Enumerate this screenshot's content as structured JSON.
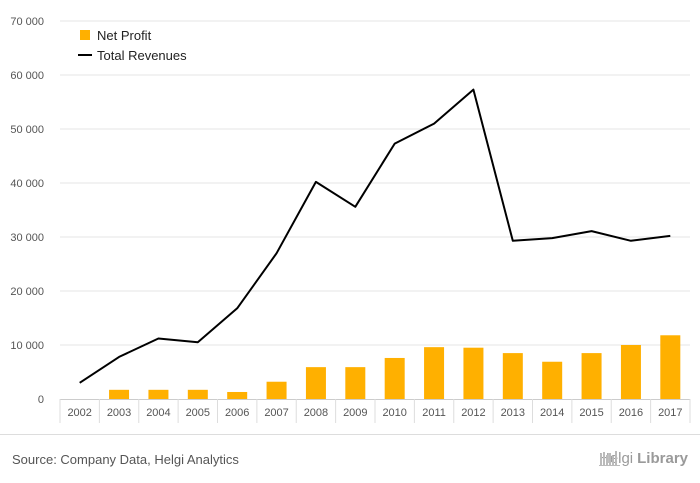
{
  "chart_data": {
    "type": "bar",
    "categories": [
      "2002",
      "2003",
      "2004",
      "2005",
      "2006",
      "2007",
      "2008",
      "2009",
      "2010",
      "2011",
      "2012",
      "2013",
      "2014",
      "2015",
      "2016",
      "2017"
    ],
    "series": [
      {
        "name": "Net Profit",
        "type": "bar",
        "color": "#ffb000",
        "values": [
          null,
          1700,
          1700,
          1700,
          1300,
          3200,
          5900,
          5900,
          7600,
          9600,
          9500,
          8500,
          6900,
          8500,
          10000,
          11800
        ]
      },
      {
        "name": "Total Revenues",
        "type": "line",
        "color": "#000000",
        "values": [
          3000,
          7800,
          11200,
          10500,
          16800,
          27000,
          40200,
          35600,
          47300,
          51000,
          57300,
          29300,
          29800,
          31100,
          29300,
          30200
        ]
      }
    ],
    "ylim": [
      0,
      70000
    ],
    "yticks": [
      0,
      10000,
      20000,
      30000,
      40000,
      50000,
      60000,
      70000
    ],
    "ytick_labels": [
      "0",
      "10 000",
      "20 000",
      "30 000",
      "40 000",
      "50 000",
      "60 000",
      "70 000"
    ],
    "grid": true,
    "legend_position": "top-left"
  },
  "footer": {
    "source": "Source: Company Data, Helgi Analytics",
    "brand_light": "Helgi",
    "brand_bold": "Library"
  }
}
